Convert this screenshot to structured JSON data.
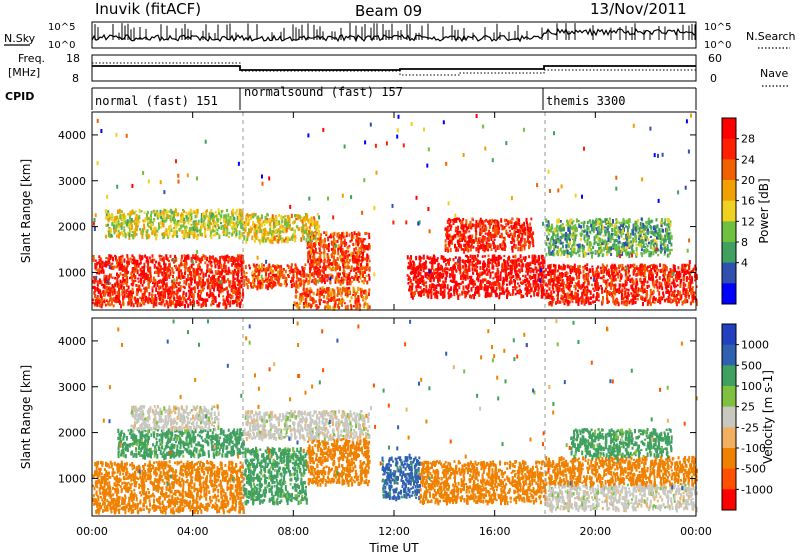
{
  "header": {
    "station": "Inuvik (fitACF)",
    "beam": "Beam 09",
    "date": "13/Nov/2011"
  },
  "summary_panels": {
    "nsky_label": "N.Sky",
    "nsearch_label": "N.Search",
    "noise_ticks_left": [
      "10^5",
      "10^0"
    ],
    "noise_ticks_right": [
      "10^5",
      "10^0"
    ],
    "freq_label_1": "Freq.",
    "freq_label_2": "[MHz]",
    "freq_ticks": [
      "18",
      "8"
    ],
    "nave_label": "Nave",
    "nave_ticks": [
      "60",
      "0"
    ],
    "cpid_label": "CPID",
    "cpid_modes": [
      {
        "name": "normal (fast) 151",
        "start_hour": 0,
        "end_hour": 6
      },
      {
        "name": "normalsound (fast) 157",
        "start_hour": 6,
        "end_hour": 18
      },
      {
        "name": "themis 3300",
        "start_hour": 18,
        "end_hour": 24
      }
    ]
  },
  "colors": {
    "power_scale": [
      "#0000ff",
      "#3050b0",
      "#40a060",
      "#70c040",
      "#f0d020",
      "#f0a000",
      "#f06000",
      "#ff2000",
      "#ff0000"
    ],
    "velocity_scale": [
      "#ff0000",
      "#ff5000",
      "#f08000",
      "#f0b060",
      "#c8c8c0",
      "#80c040",
      "#40a060",
      "#3060b0",
      "#2040c0"
    ]
  },
  "chart_data": [
    {
      "type": "heatmap",
      "panel": "power",
      "ylabel": "Slant Range [km]",
      "xlim": [
        0,
        24
      ],
      "ylim": [
        180,
        4500
      ],
      "yticks": [
        1000,
        2000,
        3000,
        4000
      ],
      "colorbar_label": "Power [dB]",
      "colorbar_ticks": [
        "28",
        "24",
        "20",
        "16",
        "12",
        "8",
        "4"
      ],
      "colorbar_range": [
        0,
        30
      ],
      "regions": [
        {
          "x": [
            0.0,
            6.0
          ],
          "y": [
            300,
            1400
          ],
          "value": 26
        },
        {
          "x": [
            0.5,
            6.0
          ],
          "y": [
            1800,
            2400
          ],
          "value": 14
        },
        {
          "x": [
            6.0,
            8.5
          ],
          "y": [
            700,
            1200
          ],
          "value": 24
        },
        {
          "x": [
            8.5,
            11.0
          ],
          "y": [
            800,
            1900
          ],
          "value": 24
        },
        {
          "x": [
            8.0,
            11.0
          ],
          "y": [
            250,
            700
          ],
          "value": 22
        },
        {
          "x": [
            12.5,
            18.0
          ],
          "y": [
            500,
            1400
          ],
          "value": 28
        },
        {
          "x": [
            14.0,
            17.5
          ],
          "y": [
            1500,
            2200
          ],
          "value": 26
        },
        {
          "x": [
            18.0,
            24.0
          ],
          "y": [
            350,
            1200
          ],
          "value": 26
        },
        {
          "x": [
            18.0,
            23.0
          ],
          "y": [
            1400,
            2200
          ],
          "value": 10
        },
        {
          "x": [
            6.0,
            9.0
          ],
          "y": [
            1700,
            2300
          ],
          "value": 16
        }
      ]
    },
    {
      "type": "heatmap",
      "panel": "velocity",
      "xlabel": "Time UT",
      "ylabel": "Slant Range [km]",
      "xlim": [
        0,
        24
      ],
      "ylim": [
        180,
        4500
      ],
      "xticks": [
        "00:00",
        "04:00",
        "08:00",
        "12:00",
        "16:00",
        "20:00",
        "00:00"
      ],
      "yticks": [
        1000,
        2000,
        3000,
        4000
      ],
      "colorbar_label": "Velocity [m s-1]",
      "colorbar_ticks": [
        "1000",
        "500",
        "100",
        "25",
        "-25",
        "-100",
        "-500",
        "-1000"
      ],
      "regions": [
        {
          "x": [
            0.0,
            6.0
          ],
          "y": [
            300,
            1400
          ],
          "value": -250
        },
        {
          "x": [
            1.0,
            6.0
          ],
          "y": [
            1500,
            2100
          ],
          "value": 150
        },
        {
          "x": [
            1.5,
            5.0
          ],
          "y": [
            2100,
            2600
          ],
          "value": 0
        },
        {
          "x": [
            6.0,
            8.5
          ],
          "y": [
            500,
            1700
          ],
          "value": 150
        },
        {
          "x": [
            8.5,
            11.0
          ],
          "y": [
            900,
            1900
          ],
          "value": -300
        },
        {
          "x": [
            11.5,
            13.0
          ],
          "y": [
            600,
            1500
          ],
          "value": 700
        },
        {
          "x": [
            13.0,
            18.0
          ],
          "y": [
            500,
            1400
          ],
          "value": -300
        },
        {
          "x": [
            18.0,
            24.0
          ],
          "y": [
            350,
            900
          ],
          "value": 0
        },
        {
          "x": [
            18.0,
            24.0
          ],
          "y": [
            900,
            1500
          ],
          "value": -300
        },
        {
          "x": [
            19.0,
            23.0
          ],
          "y": [
            1500,
            2100
          ],
          "value": 150
        },
        {
          "x": [
            6.0,
            11.0
          ],
          "y": [
            1900,
            2500
          ],
          "value": 0
        }
      ]
    }
  ]
}
